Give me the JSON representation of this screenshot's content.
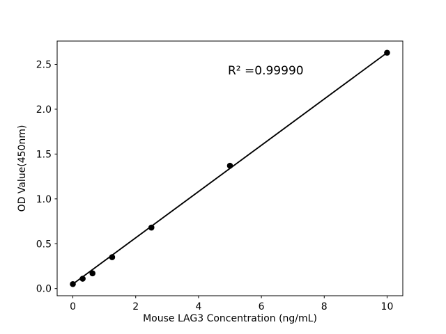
{
  "chart_data": {
    "type": "scatter",
    "title": "",
    "xlabel": "Mouse LAG3 Concentration (ng/mL)",
    "ylabel": "OD Value(450nm)",
    "annotation": "R² =0.99990",
    "x": [
      0,
      0.3125,
      0.625,
      1.25,
      2.5,
      5,
      10
    ],
    "y": [
      0.05,
      0.11,
      0.17,
      0.35,
      0.68,
      1.37,
      2.63
    ],
    "trendline": {
      "x": [
        0,
        10
      ],
      "y": [
        0.05,
        2.63
      ]
    },
    "xticks": [
      0,
      2,
      4,
      6,
      8,
      10
    ],
    "xtick_labels": [
      "0",
      "2",
      "4",
      "6",
      "8",
      "10"
    ],
    "yticks": [
      0,
      0.5,
      1,
      1.5,
      2,
      2.5
    ],
    "ytick_labels": [
      "0.0",
      "0.5",
      "1.0",
      "1.5",
      "2.0",
      "2.5"
    ],
    "xlim": [
      -0.5,
      10.5
    ],
    "ylim": [
      -0.08,
      2.76
    ],
    "grid": false,
    "legend": null,
    "marker_radius": 4.3,
    "line_width": 1.9,
    "colors": {
      "marker": "#000000",
      "line": "#000000",
      "axis": "#000000",
      "text": "#000000",
      "background": "#ffffff"
    }
  }
}
